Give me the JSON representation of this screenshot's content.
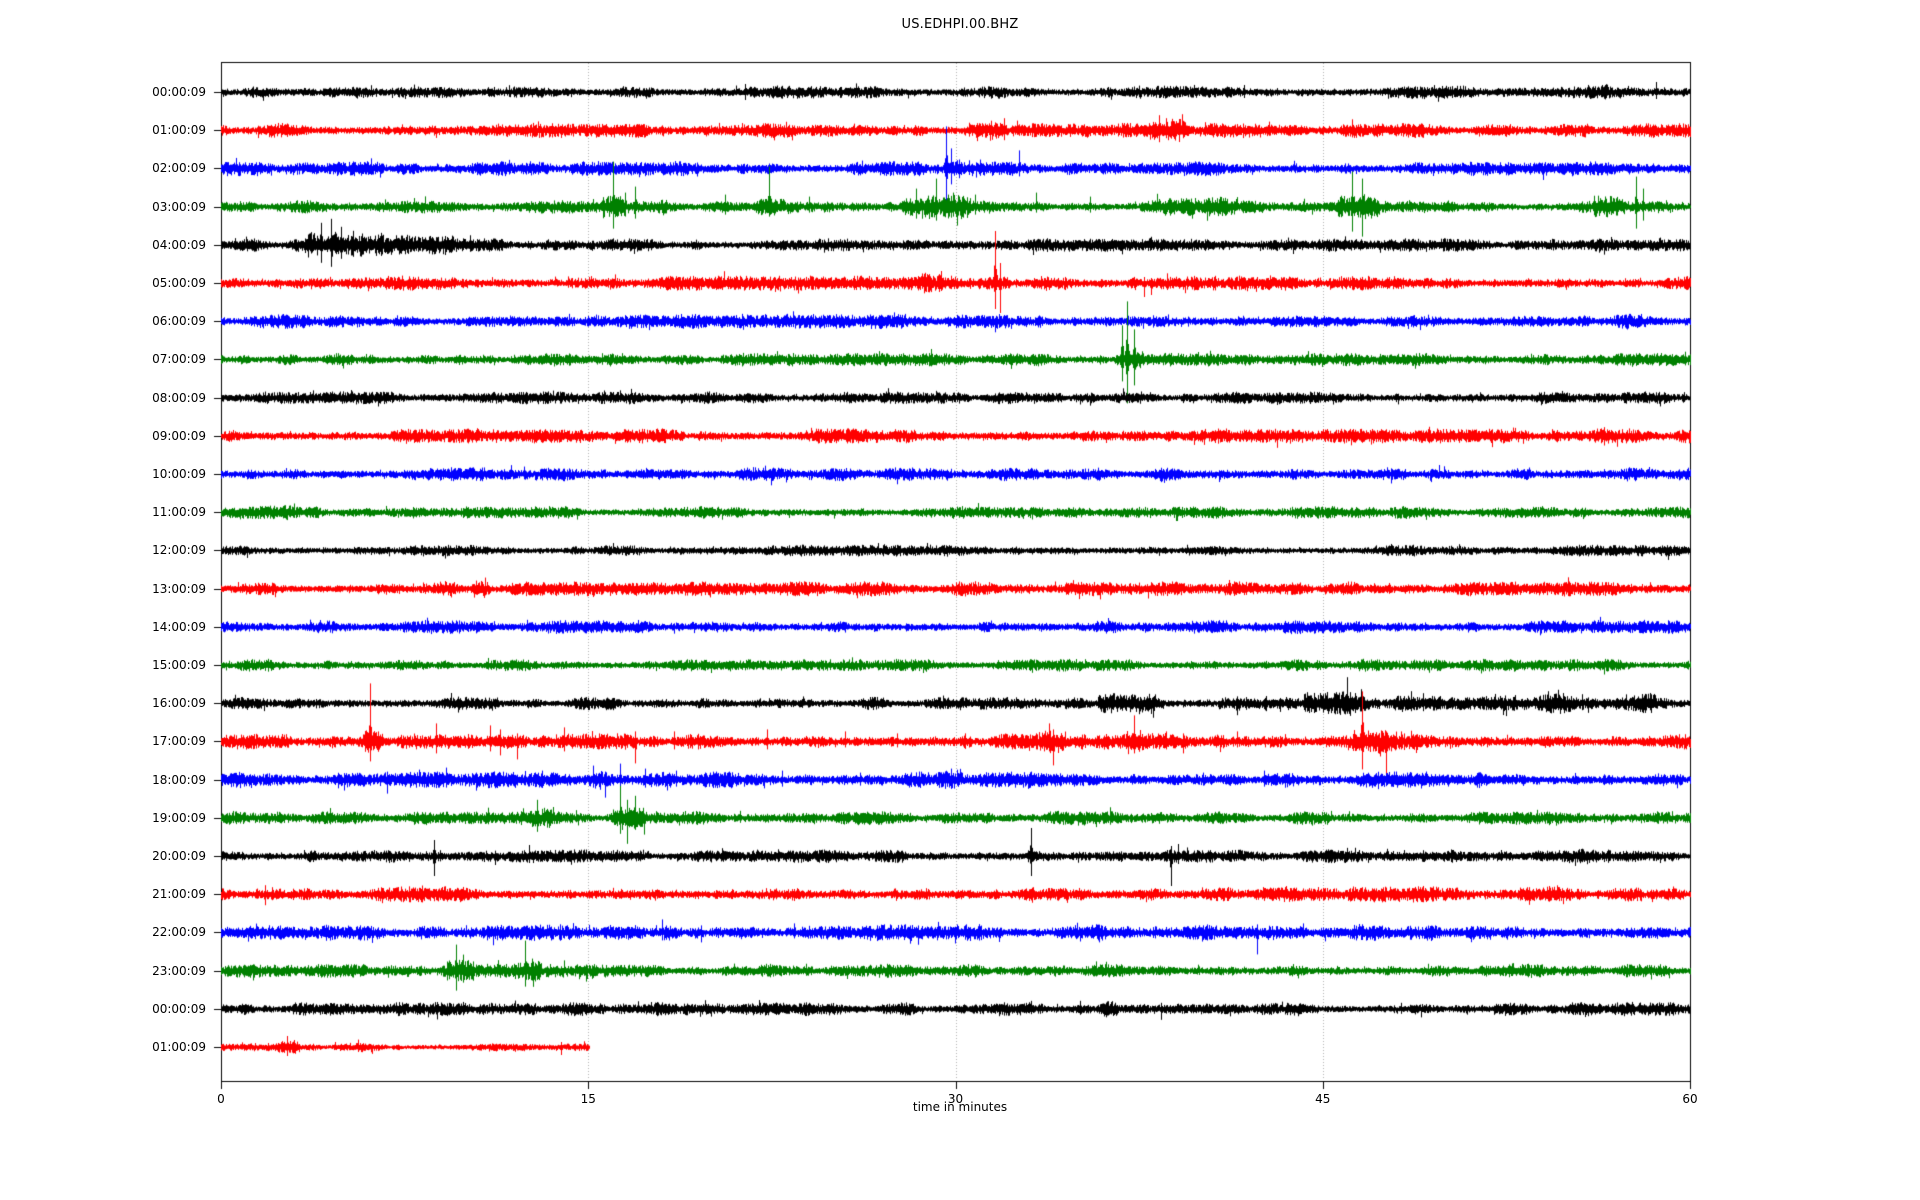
{
  "window": {
    "background": "#ffffff"
  },
  "chart_data": {
    "type": "line",
    "subtype": "seismogram-dayplot",
    "title": "US.EDHPI.00.BHZ",
    "xlabel": "time in minutes",
    "x_range": [
      0,
      60
    ],
    "x_ticks": [
      0,
      15,
      30,
      45,
      60
    ],
    "grid": {
      "vertical_dotted_at_minutes": [
        15,
        30,
        45
      ],
      "gridline_color": "#b0b0b0",
      "axis_frame_color": "#000000"
    },
    "legend_position": "none",
    "trace_colors_cycle": [
      "#000000",
      "#ff0000",
      "#0000ff",
      "#008000"
    ],
    "traces": [
      {
        "label": "00:00:09",
        "color": "#000000",
        "amp": 4.0,
        "end": 60,
        "spikes": [
          [
            21.4,
            8,
            8
          ],
          [
            41.8,
            7,
            6
          ],
          [
            58.6,
            10,
            7
          ]
        ],
        "bursts": [
          [
            41,
            43,
            1.3
          ],
          [
            55,
            59,
            1.25
          ]
        ]
      },
      {
        "label": "01:00:09",
        "color": "#ff0000",
        "amp": 4.5,
        "end": 60,
        "spikes": [
          [
            32.0,
            12,
            10
          ],
          [
            38.3,
            15,
            12
          ],
          [
            38.6,
            12,
            8
          ],
          [
            40.2,
            8,
            6
          ]
        ],
        "bursts": [
          [
            31.4,
            32.6,
            1.5
          ],
          [
            37.9,
            39.4,
            1.7
          ]
        ]
      },
      {
        "label": "02:00:09",
        "color": "#0000ff",
        "amp": 4.5,
        "end": 60,
        "spikes": [
          [
            29.6,
            42,
            34
          ],
          [
            29.8,
            20,
            16
          ],
          [
            32.6,
            18,
            8
          ]
        ],
        "bursts": [
          [
            29.2,
            30.2,
            1.5
          ]
        ]
      },
      {
        "label": "03:00:09",
        "color": "#008000",
        "amp": 4.0,
        "end": 60,
        "spikes": [
          [
            16.0,
            45,
            22
          ],
          [
            16.5,
            14,
            10
          ],
          [
            16.9,
            20,
            12
          ],
          [
            20.6,
            12,
            8
          ],
          [
            22.4,
            40,
            10
          ],
          [
            24.0,
            10,
            6
          ],
          [
            28.4,
            18,
            12
          ],
          [
            29.2,
            28,
            14
          ],
          [
            29.9,
            14,
            10
          ],
          [
            30.8,
            12,
            8
          ],
          [
            33.3,
            14,
            6
          ],
          [
            35.5,
            10,
            6
          ],
          [
            46.2,
            35,
            25
          ],
          [
            46.6,
            28,
            30
          ],
          [
            57.8,
            30,
            22
          ],
          [
            58.1,
            18,
            14
          ]
        ],
        "bursts": [
          [
            15.6,
            18.2,
            1.7
          ],
          [
            21.8,
            23,
            1.3
          ],
          [
            27.8,
            30.6,
            1.9
          ],
          [
            38,
            41.5,
            1.55
          ],
          [
            45.6,
            47.3,
            2.0
          ],
          [
            56,
            59.3,
            1.8
          ]
        ]
      },
      {
        "label": "04:00:09",
        "color": "#000000",
        "amp": 4.0,
        "end": 60,
        "spikes": [
          [
            4.1,
            22,
            18
          ],
          [
            4.5,
            26,
            22
          ],
          [
            4.9,
            18,
            14
          ],
          [
            5.4,
            14,
            12
          ],
          [
            6.4,
            10,
            8
          ],
          [
            7.6,
            10,
            8
          ]
        ],
        "bursts": [
          [
            3.4,
            6.6,
            2.2
          ],
          [
            6.6,
            9.5,
            1.5
          ]
        ]
      },
      {
        "label": "05:00:09",
        "color": "#ff0000",
        "amp": 4.5,
        "end": 60,
        "spikes": [
          [
            29.4,
            12,
            8
          ],
          [
            31.6,
            52,
            26
          ],
          [
            31.8,
            20,
            30
          ],
          [
            37.7,
            6,
            14
          ],
          [
            38.0,
            5,
            12
          ]
        ],
        "bursts": [
          [
            28.6,
            30.6,
            1.5
          ],
          [
            31.2,
            32.2,
            1.6
          ]
        ]
      },
      {
        "label": "06:00:09",
        "color": "#0000ff",
        "amp": 4.5,
        "end": 60,
        "spikes": [],
        "bursts": []
      },
      {
        "label": "07:00:09",
        "color": "#008000",
        "amp": 4.0,
        "end": 60,
        "spikes": [
          [
            36.8,
            34,
            22
          ],
          [
            37.0,
            58,
            44
          ],
          [
            37.3,
            30,
            26
          ]
        ],
        "bursts": [
          [
            36.5,
            37.7,
            1.5
          ]
        ]
      },
      {
        "label": "08:00:09",
        "color": "#000000",
        "amp": 3.8,
        "end": 60,
        "spikes": [],
        "bursts": []
      },
      {
        "label": "09:00:09",
        "color": "#ff0000",
        "amp": 4.5,
        "end": 60,
        "spikes": [],
        "bursts": []
      },
      {
        "label": "10:00:09",
        "color": "#0000ff",
        "amp": 4.2,
        "end": 60,
        "spikes": [],
        "bursts": []
      },
      {
        "label": "11:00:09",
        "color": "#008000",
        "amp": 3.8,
        "end": 60,
        "spikes": [
          [
            2.6,
            7,
            5
          ]
        ],
        "bursts": [
          [
            2,
            4,
            1.2
          ]
        ]
      },
      {
        "label": "12:00:09",
        "color": "#000000",
        "amp": 3.5,
        "end": 60,
        "spikes": [],
        "bursts": []
      },
      {
        "label": "13:00:09",
        "color": "#ff0000",
        "amp": 4.5,
        "end": 60,
        "spikes": [
          [
            10.4,
            8,
            6
          ]
        ],
        "bursts": [
          [
            0.3,
            2.2,
            1.3
          ],
          [
            8.8,
            11,
            1.25
          ]
        ]
      },
      {
        "label": "14:00:09",
        "color": "#0000ff",
        "amp": 4.2,
        "end": 60,
        "spikes": [
          [
            12.5,
            7,
            5
          ]
        ],
        "bursts": []
      },
      {
        "label": "15:00:09",
        "color": "#008000",
        "amp": 3.8,
        "end": 60,
        "spikes": [],
        "bursts": []
      },
      {
        "label": "16:00:09",
        "color": "#000000",
        "amp": 4.0,
        "end": 60,
        "spikes": [
          [
            36.4,
            8,
            6
          ],
          [
            41.5,
            6,
            12
          ],
          [
            46.0,
            26,
            10
          ],
          [
            48.6,
            12,
            8
          ],
          [
            49.1,
            10,
            8
          ],
          [
            54.2,
            12,
            8
          ],
          [
            55.6,
            9,
            7
          ]
        ],
        "bursts": [
          [
            35.8,
            38.2,
            1.6
          ],
          [
            40.7,
            42.7,
            1.8
          ],
          [
            44.2,
            47.3,
            1.9
          ],
          [
            47.9,
            49.8,
            1.8
          ],
          [
            51.5,
            58.6,
            1.55
          ]
        ]
      },
      {
        "label": "17:00:09",
        "color": "#ff0000",
        "amp": 5.0,
        "end": 60,
        "spikes": [
          [
            6.1,
            58,
            20
          ],
          [
            8.8,
            18,
            12
          ],
          [
            11.0,
            16,
            10
          ],
          [
            11.4,
            12,
            14
          ],
          [
            12.1,
            8,
            18
          ],
          [
            14.0,
            14,
            10
          ],
          [
            16.9,
            10,
            22
          ],
          [
            18.5,
            10,
            8
          ],
          [
            22.3,
            12,
            8
          ],
          [
            25.5,
            10,
            6
          ],
          [
            27.6,
            8,
            6
          ],
          [
            33.8,
            18,
            10
          ],
          [
            34.0,
            12,
            24
          ],
          [
            37.3,
            26,
            12
          ],
          [
            38.6,
            10,
            8
          ],
          [
            39.3,
            8,
            12
          ],
          [
            41.5,
            10,
            6
          ],
          [
            46.6,
            50,
            28
          ],
          [
            47.6,
            10,
            34
          ],
          [
            48.2,
            10,
            8
          ]
        ],
        "bursts": [
          [
            5.8,
            6.6,
            1.5
          ],
          [
            33.4,
            34.4,
            1.4
          ],
          [
            37,
            37.8,
            1.4
          ],
          [
            46.2,
            48,
            1.5
          ]
        ]
      },
      {
        "label": "18:00:09",
        "color": "#0000ff",
        "amp": 5.0,
        "end": 60,
        "spikes": [
          [
            6.8,
            8,
            14
          ],
          [
            8.1,
            10,
            7
          ],
          [
            9.2,
            12,
            8
          ],
          [
            10.4,
            7,
            11
          ],
          [
            13.1,
            9,
            6
          ],
          [
            15.2,
            14,
            8
          ],
          [
            15.7,
            8,
            18
          ],
          [
            16.3,
            16,
            10
          ],
          [
            17.3,
            11,
            8
          ],
          [
            18.6,
            9,
            7
          ],
          [
            20.2,
            8,
            6
          ],
          [
            22.9,
            9,
            7
          ],
          [
            26.1,
            7,
            6
          ],
          [
            29.8,
            11,
            7
          ],
          [
            33.1,
            8,
            6
          ],
          [
            40.1,
            7,
            6
          ],
          [
            42.6,
            9,
            7
          ],
          [
            48.6,
            7,
            6
          ]
        ],
        "bursts": [
          [
            14.8,
            17.6,
            1.4
          ],
          [
            29.3,
            30.3,
            1.3
          ]
        ]
      },
      {
        "label": "19:00:09",
        "color": "#008000",
        "amp": 4.2,
        "end": 60,
        "spikes": [
          [
            12.9,
            18,
            14
          ],
          [
            13.2,
            10,
            8
          ],
          [
            16.3,
            32,
            16
          ],
          [
            16.6,
            18,
            26
          ],
          [
            16.9,
            22,
            12
          ],
          [
            21.2,
            7,
            5
          ],
          [
            34.2,
            7,
            5
          ]
        ],
        "bursts": [
          [
            12.6,
            13.5,
            1.4
          ],
          [
            15.9,
            17.3,
            1.7
          ]
        ]
      },
      {
        "label": "20:00:09",
        "color": "#000000",
        "amp": 4.0,
        "end": 60,
        "spikes": [
          [
            8.7,
            16,
            20
          ],
          [
            12.6,
            11,
            7
          ],
          [
            33.1,
            28,
            20
          ],
          [
            38.8,
            10,
            30
          ],
          [
            39.1,
            12,
            8
          ],
          [
            52.3,
            6,
            5
          ]
        ],
        "bursts": [
          [
            8.3,
            9.2,
            1.4
          ],
          [
            32.7,
            33.6,
            1.4
          ],
          [
            38.5,
            39.5,
            1.4
          ],
          [
            55,
            59,
            1.2
          ]
        ]
      },
      {
        "label": "21:00:09",
        "color": "#ff0000",
        "amp": 5.0,
        "end": 60,
        "spikes": [
          [
            1.8,
            9,
            11
          ],
          [
            2.1,
            7,
            6
          ]
        ],
        "bursts": [
          [
            1.4,
            2.6,
            1.4
          ]
        ]
      },
      {
        "label": "22:00:09",
        "color": "#0000ff",
        "amp": 5.0,
        "end": 60,
        "spikes": [
          [
            18.0,
            13,
            8
          ],
          [
            19.6,
            7,
            10
          ],
          [
            23.4,
            9,
            6
          ],
          [
            42.3,
            8,
            22
          ],
          [
            44.2,
            9,
            6
          ]
        ],
        "bursts": [
          [
            17.6,
            18.4,
            1.3
          ]
        ]
      },
      {
        "label": "23:00:09",
        "color": "#008000",
        "amp": 4.2,
        "end": 60,
        "spikes": [
          [
            9.6,
            26,
            20
          ],
          [
            9.9,
            16,
            12
          ],
          [
            12.4,
            30,
            16
          ],
          [
            12.7,
            12,
            10
          ],
          [
            14.9,
            6,
            11
          ]
        ],
        "bursts": [
          [
            9.2,
            10.3,
            1.6
          ],
          [
            12,
            13.1,
            1.6
          ]
        ]
      },
      {
        "label": "00:00:09",
        "color": "#000000",
        "amp": 4.2,
        "end": 60,
        "spikes": [
          [
            35.1,
            8,
            6
          ],
          [
            38.4,
            6,
            11
          ],
          [
            48.2,
            6,
            5
          ]
        ],
        "bursts": [
          [
            34.6,
            36.6,
            1.3
          ]
        ]
      },
      {
        "label": "01:00:09",
        "color": "#ff0000",
        "amp": 2.6,
        "end": 15.05,
        "spikes": [
          [
            2.7,
            11,
            9
          ],
          [
            3.0,
            7,
            6
          ],
          [
            5.6,
            6,
            5
          ],
          [
            13.9,
            5,
            8
          ]
        ],
        "bursts": [
          [
            2.3,
            3.2,
            1.5
          ],
          [
            4.8,
            6.2,
            1.25
          ]
        ]
      }
    ]
  }
}
